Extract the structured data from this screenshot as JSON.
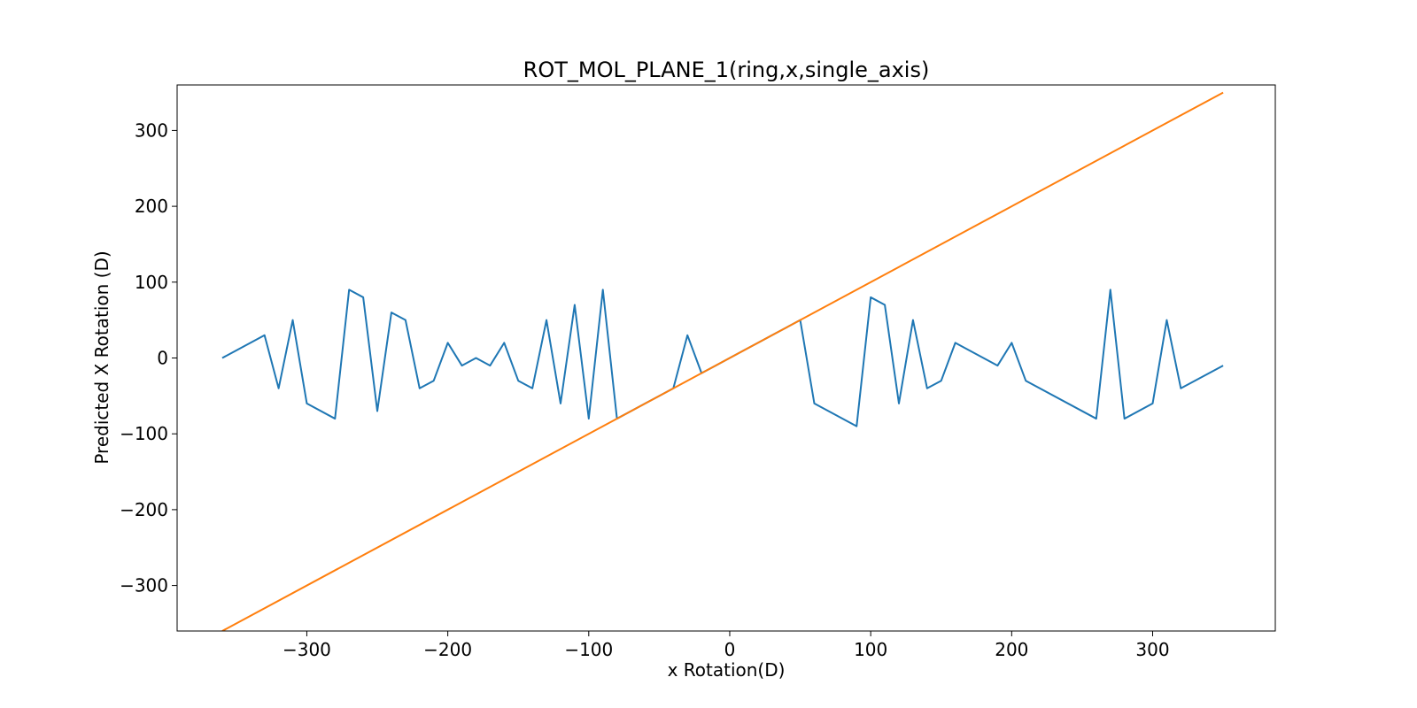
{
  "chart_data": {
    "type": "line",
    "title": "ROT_MOL_PLANE_1(ring,x,single_axis)",
    "xlabel": "x Rotation(D)",
    "ylabel": "Predicted X Rotation (D)",
    "xlim": [
      -392,
      387
    ],
    "ylim": [
      -360,
      360
    ],
    "xticks": [
      -300,
      -200,
      -100,
      0,
      100,
      200,
      300
    ],
    "yticks": [
      -300,
      -200,
      -100,
      0,
      100,
      200,
      300
    ],
    "xtick_labels": [
      "−300",
      "−200",
      "−100",
      "0",
      "100",
      "200",
      "300"
    ],
    "ytick_labels": [
      "−300",
      "−200",
      "−100",
      "0",
      "100",
      "200",
      "300"
    ],
    "grid": false,
    "legend": "none",
    "series": [
      {
        "color": "#1f77b4",
        "x": [
          -360,
          -330,
          -320,
          -310,
          -300,
          -280,
          -270,
          -260,
          -250,
          -240,
          -230,
          -220,
          -210,
          -200,
          -190,
          -180,
          -170,
          -160,
          -150,
          -140,
          -130,
          -120,
          -110,
          -100,
          -90,
          -80,
          -70,
          -60,
          -50,
          -40,
          -30,
          -20,
          -10,
          0,
          10,
          20,
          30,
          40,
          50,
          60,
          90,
          100,
          110,
          120,
          130,
          140,
          150,
          160,
          190,
          200,
          210,
          260,
          270,
          280,
          300,
          310,
          320,
          350
        ],
        "y": [
          0,
          30,
          -40,
          50,
          -60,
          -80,
          90,
          80,
          -70,
          60,
          50,
          -40,
          -30,
          20,
          -10,
          0,
          -10,
          20,
          -30,
          -40,
          50,
          -60,
          70,
          -80,
          90,
          -80,
          -70,
          -60,
          -50,
          -40,
          30,
          -20,
          -10,
          0,
          10,
          20,
          30,
          40,
          50,
          -60,
          -90,
          80,
          70,
          -60,
          50,
          -40,
          -30,
          20,
          -10,
          20,
          -30,
          -80,
          90,
          -80,
          -60,
          50,
          -40,
          -10
        ]
      },
      {
        "color": "#ff7f0e",
        "x": [
          -360,
          350
        ],
        "y": [
          -360,
          350
        ]
      }
    ]
  }
}
